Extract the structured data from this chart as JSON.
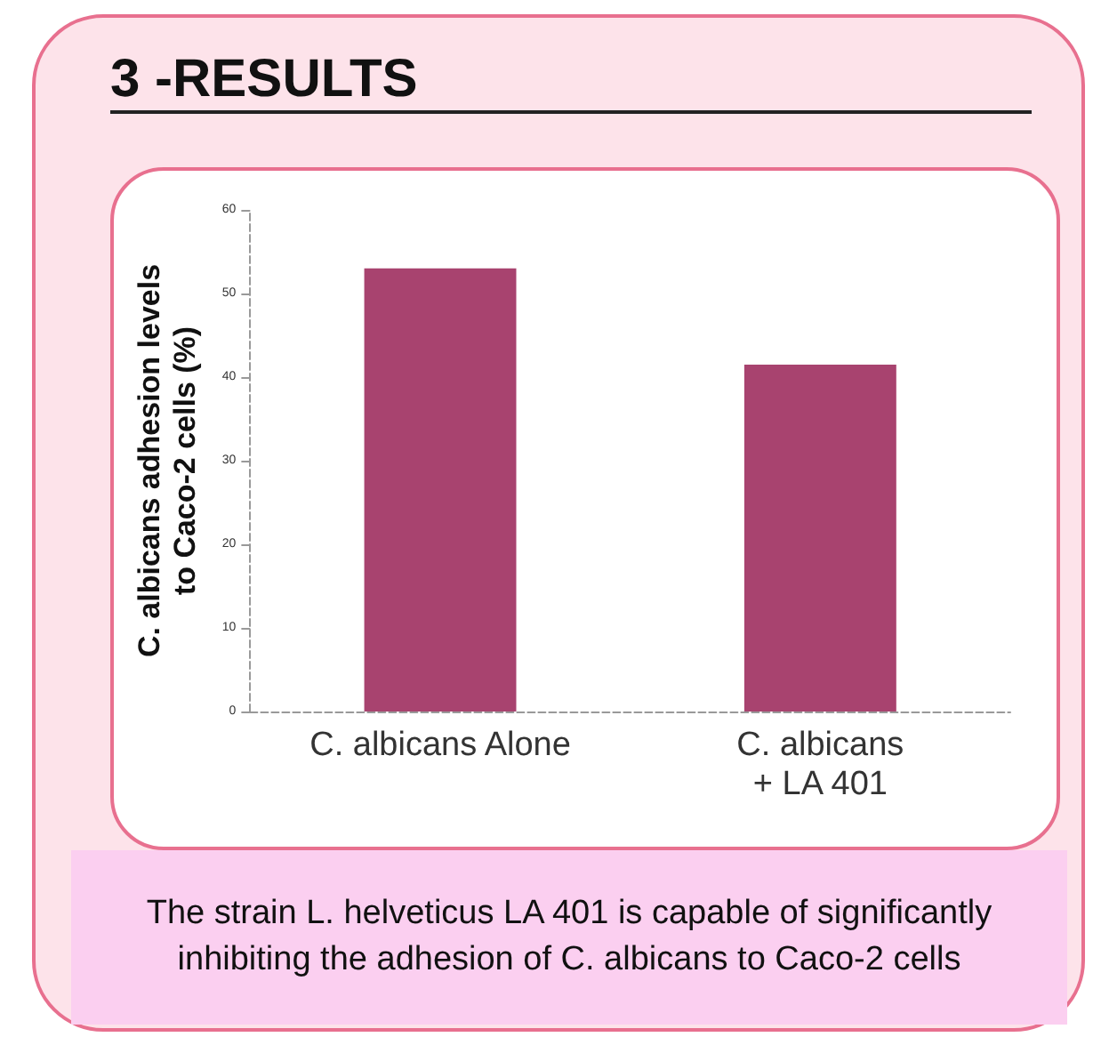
{
  "chart_data": {
    "type": "bar",
    "title": "3 -RESULTS",
    "ylabel": "C. albicans adhesion levels\nto Caco-2 cells (%)",
    "categories": [
      "C. albicans Alone",
      "C. albicans\n+ LA 401"
    ],
    "values": [
      53,
      41.5
    ],
    "color": "#a8436f",
    "ylim": [
      0,
      60
    ],
    "yticks": [
      0,
      10,
      20,
      30,
      40,
      50,
      60
    ],
    "grid": false,
    "annotations": [
      "The strain L. helveticus LA 401 is capable of significantly inhibiting the adhesion of C. albicans to Caco-2 cells"
    ]
  }
}
